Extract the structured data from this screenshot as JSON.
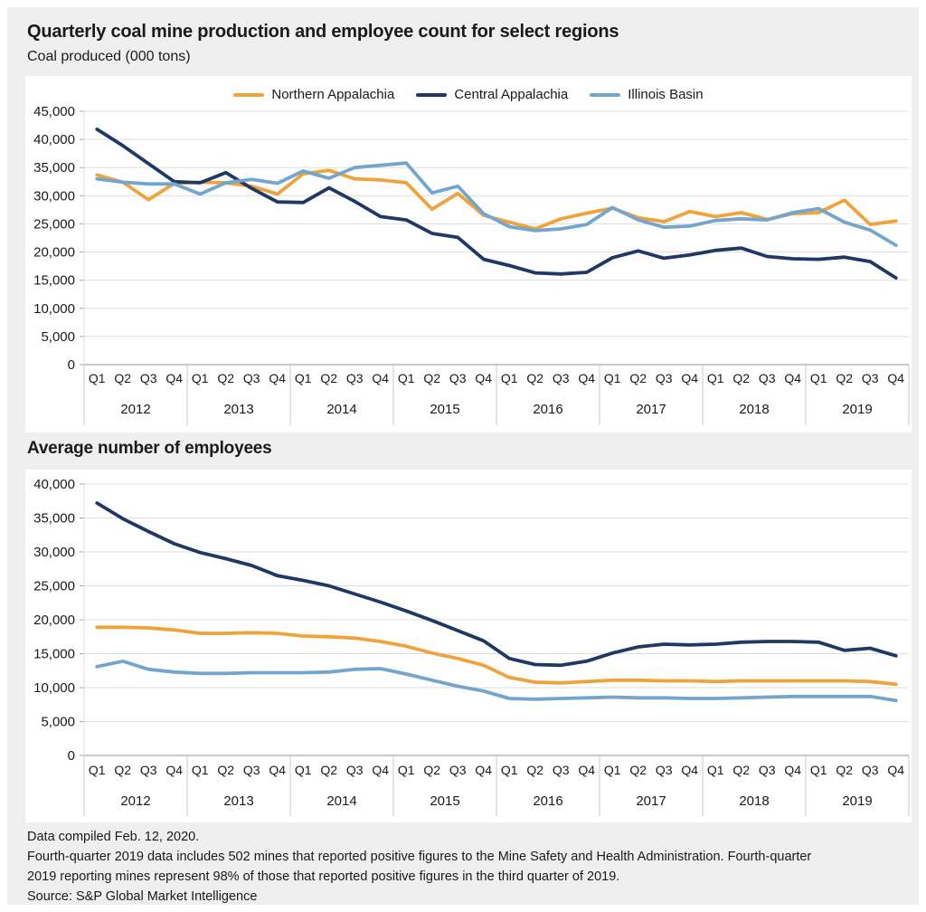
{
  "title": "Quarterly coal mine production and employee count for select regions",
  "subtitle": "Coal produced (000 tons)",
  "section2_title": "Average number of employees",
  "colors": {
    "northern_appalachia": "#F1A33B",
    "central_appalachia": "#1F3865",
    "illinois_basin": "#73A6CF",
    "background": "#EFEFEF",
    "gridline": "#DEDEDE"
  },
  "legend": {
    "items": [
      {
        "label": "Northern Appalachia",
        "color": "#F1A33B"
      },
      {
        "label": "Central Appalachia",
        "color": "#1F3865"
      },
      {
        "label": "Illinois Basin",
        "color": "#73A6CF"
      }
    ]
  },
  "footer": {
    "lines": [
      "Data compiled Feb. 12, 2020.",
      "Fourth-quarter 2019 data includes 502 mines that reported positive figures to the Mine Safety and Health Administration. Fourth-quarter",
      "2019 reporting mines represent 98% of those that reported positive figures in the third quarter of 2019.",
      "Source: S&P Global Market Intelligence"
    ]
  },
  "chart_data": [
    {
      "type": "line",
      "name": "coal-production-chart",
      "title": "Coal produced (000 tons)",
      "ylim": [
        0,
        45000
      ],
      "ytick_step": 5000,
      "grid": true,
      "legend_position": "top-center",
      "categories": [
        "Q1",
        "Q2",
        "Q3",
        "Q4",
        "Q1",
        "Q2",
        "Q3",
        "Q4",
        "Q1",
        "Q2",
        "Q3",
        "Q4",
        "Q1",
        "Q2",
        "Q3",
        "Q4",
        "Q1",
        "Q2",
        "Q3",
        "Q4",
        "Q1",
        "Q2",
        "Q3",
        "Q4",
        "Q1",
        "Q2",
        "Q3",
        "Q4",
        "Q1",
        "Q2",
        "Q3",
        "Q4"
      ],
      "years": [
        "2012",
        "2013",
        "2014",
        "2015",
        "2016",
        "2017",
        "2018",
        "2019"
      ],
      "series": [
        {
          "name": "Northern Appalachia",
          "color": "#F1A33B",
          "values": [
            33700,
            32400,
            29300,
            32200,
            32400,
            32300,
            31700,
            30300,
            33900,
            34500,
            33000,
            32800,
            32300,
            27600,
            30400,
            26500,
            25300,
            24100,
            25900,
            26900,
            27800,
            26100,
            25400,
            27200,
            26300,
            27000,
            25800,
            26800,
            27000,
            29200,
            24900,
            25500
          ]
        },
        {
          "name": "Central Appalachia",
          "color": "#1F3865",
          "values": [
            41800,
            38900,
            35700,
            32500,
            32300,
            34100,
            31300,
            28900,
            28800,
            31400,
            29000,
            26300,
            25700,
            23300,
            22600,
            18700,
            17600,
            16300,
            16100,
            16400,
            19000,
            20200,
            18900,
            19500,
            20300,
            20700,
            19200,
            18800,
            18700,
            19100,
            18300,
            15400
          ]
        },
        {
          "name": "Illinois Basin",
          "color": "#73A6CF",
          "values": [
            33000,
            32400,
            32100,
            32100,
            30300,
            32300,
            32900,
            32200,
            34400,
            33100,
            35000,
            35400,
            35800,
            30500,
            31700,
            26800,
            24500,
            23800,
            24100,
            24900,
            27900,
            25700,
            24400,
            24600,
            25600,
            25900,
            25700,
            27000,
            27700,
            25300,
            23900,
            21200
          ]
        }
      ]
    },
    {
      "type": "line",
      "name": "employee-count-chart",
      "title": "Average number of employees",
      "ylim": [
        0,
        40000
      ],
      "ytick_step": 5000,
      "grid": true,
      "legend_position": "none",
      "categories": [
        "Q1",
        "Q2",
        "Q3",
        "Q4",
        "Q1",
        "Q2",
        "Q3",
        "Q4",
        "Q1",
        "Q2",
        "Q3",
        "Q4",
        "Q1",
        "Q2",
        "Q3",
        "Q4",
        "Q1",
        "Q2",
        "Q3",
        "Q4",
        "Q1",
        "Q2",
        "Q3",
        "Q4",
        "Q1",
        "Q2",
        "Q3",
        "Q4",
        "Q1",
        "Q2",
        "Q3",
        "Q4"
      ],
      "years": [
        "2012",
        "2013",
        "2014",
        "2015",
        "2016",
        "2017",
        "2018",
        "2019"
      ],
      "series": [
        {
          "name": "Northern Appalachia",
          "color": "#F1A33B",
          "values": [
            18900,
            18900,
            18800,
            18500,
            18000,
            18000,
            18100,
            18000,
            17600,
            17500,
            17300,
            16800,
            16100,
            15100,
            14300,
            13300,
            11500,
            10800,
            10700,
            10900,
            11100,
            11100,
            11000,
            11000,
            10900,
            11000,
            11000,
            11000,
            11000,
            11000,
            10900,
            10500
          ]
        },
        {
          "name": "Central Appalachia",
          "color": "#1F3865",
          "values": [
            37200,
            34900,
            33000,
            31200,
            29900,
            29000,
            28000,
            26500,
            25800,
            25000,
            23800,
            22600,
            21300,
            19900,
            18400,
            16900,
            14300,
            13400,
            13300,
            13900,
            15100,
            16000,
            16400,
            16300,
            16400,
            16700,
            16800,
            16800,
            16700,
            15500,
            15800,
            14700
          ]
        },
        {
          "name": "Illinois Basin",
          "color": "#73A6CF",
          "values": [
            13100,
            13900,
            12700,
            12300,
            12100,
            12100,
            12200,
            12200,
            12200,
            12300,
            12700,
            12800,
            12000,
            11100,
            10200,
            9500,
            8400,
            8300,
            8400,
            8500,
            8600,
            8500,
            8500,
            8400,
            8400,
            8500,
            8600,
            8700,
            8700,
            8700,
            8700,
            8100
          ]
        }
      ]
    }
  ]
}
